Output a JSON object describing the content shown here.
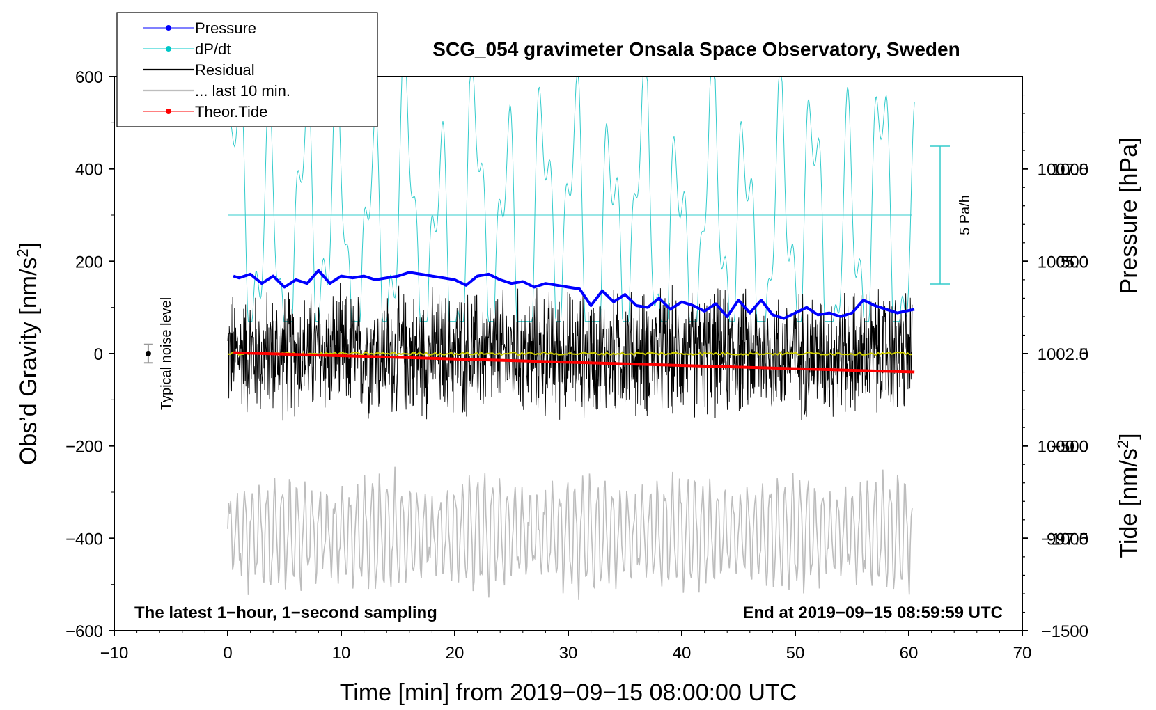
{
  "chart_data": {
    "type": "line",
    "title": "SCG_054 gravimeter Onsala Space Observatory, Sweden",
    "xlabel": "Time [min] from 2019−09−15 08:00:00 UTC",
    "ylabel_prefix": "Obs’d Gravity [nm/s",
    "ylabel_sup": "2",
    "ylabel_suffix": "]",
    "y2label": "Pressure [hPa]",
    "y3label_prefix": "Tide [nm/s",
    "y3label_sup": "2",
    "y3label_suffix": "]",
    "xlim": [
      -10,
      70
    ],
    "ylim": [
      -600,
      600
    ],
    "pressure_lim": [
      995,
      1010
    ],
    "tide_lim": [
      -1500,
      1500
    ],
    "x_ticks": [
      "−10",
      "0",
      "10",
      "20",
      "30",
      "40",
      "50",
      "60",
      "70"
    ],
    "y_ticks": [
      "−600",
      "−400",
      "−200",
      "0",
      "200",
      "400",
      "600"
    ],
    "pressure_ticks": [
      "997.5",
      "1000.0",
      "1002.5",
      "1005.0",
      "1007.5"
    ],
    "tide_ticks": [
      "−1500",
      "−1000",
      "−500",
      "0",
      "500",
      "1000"
    ],
    "legend": [
      {
        "label": "Pressure",
        "color": "#0000ff",
        "style": "line-dot"
      },
      {
        "label": "dP/dt",
        "color": "#00c8c8",
        "style": "line-dot"
      },
      {
        "label": "Residual",
        "color": "#000000",
        "style": "line"
      },
      {
        "label": "... last 10 min.",
        "color": "#bdbdbd",
        "style": "line"
      },
      {
        "label": "Theor.Tide",
        "color": "#ff0000",
        "style": "line-dot"
      }
    ],
    "annotation_left": "The latest 1−hour, 1−second sampling",
    "annotation_right": "End at 2019−09−15 08:59:59 UTC",
    "noise_label": "Typical noise level",
    "noise_x": -7,
    "noise_y": 0,
    "noise_err": 20,
    "scale_bar_label": "5 Pa/h",
    "pressure_series_x": [
      0.5,
      1,
      2,
      3,
      4,
      5,
      6,
      7,
      8,
      9,
      10,
      11,
      12,
      13,
      14,
      15,
      16,
      17,
      18,
      19,
      20,
      21,
      22,
      23,
      24,
      25,
      26,
      27,
      28,
      29,
      30,
      31,
      32,
      33,
      34,
      35,
      36,
      37,
      38,
      39,
      40,
      41,
      42,
      43,
      44,
      45,
      46,
      47,
      48,
      49,
      50,
      51,
      52,
      53,
      54,
      55,
      56,
      57,
      58,
      59,
      60.5
    ],
    "pressure_series_hpa": [
      1004.6,
      1004.55,
      1004.65,
      1004.4,
      1004.6,
      1004.3,
      1004.5,
      1004.4,
      1004.75,
      1004.4,
      1004.6,
      1004.55,
      1004.6,
      1004.5,
      1004.55,
      1004.6,
      1004.7,
      1004.65,
      1004.6,
      1004.55,
      1004.5,
      1004.35,
      1004.6,
      1004.65,
      1004.5,
      1004.4,
      1004.45,
      1004.3,
      1004.4,
      1004.35,
      1004.3,
      1004.25,
      1003.8,
      1004.2,
      1003.9,
      1004.1,
      1003.8,
      1003.75,
      1004.0,
      1003.7,
      1003.9,
      1003.8,
      1003.65,
      1003.85,
      1003.5,
      1003.95,
      1003.6,
      1003.95,
      1003.55,
      1003.45,
      1003.6,
      1003.75,
      1003.55,
      1003.6,
      1003.5,
      1003.6,
      1003.95,
      1003.8,
      1003.7,
      1003.6,
      1003.7
    ],
    "tide_start": 0.5,
    "tide_end": 60.5,
    "tide_start_value": 5,
    "tide_end_value": -100,
    "residual_x_range": [
      0,
      60.3
    ],
    "residual_amplitude": 160
  }
}
